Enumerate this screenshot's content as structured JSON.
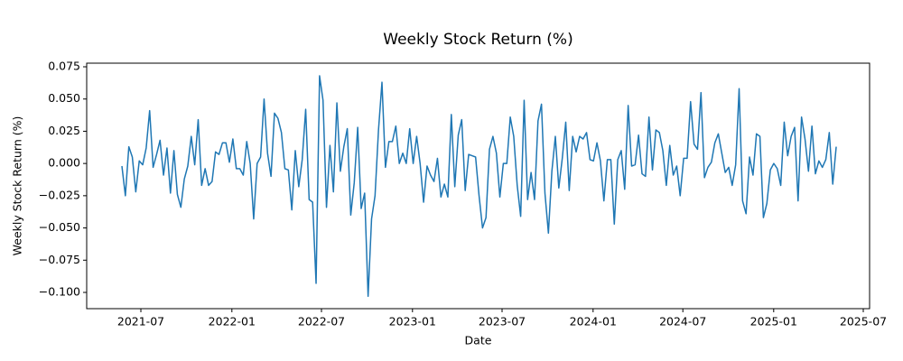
{
  "chart_data": {
    "type": "line",
    "title": "Weekly Stock Return (%)",
    "x_label": "Date",
    "y_label": "Weekly Stock Return (%)",
    "color": "#1f77b4",
    "xlim": [
      2021.196,
      2025.531
    ],
    "ylim": [
      -0.1126,
      0.0778
    ],
    "xticks": [
      {
        "value": 2021.496,
        "label": "2021-07"
      },
      {
        "value": 2022.0,
        "label": "2022-01"
      },
      {
        "value": 2022.496,
        "label": "2022-07"
      },
      {
        "value": 2023.0,
        "label": "2023-01"
      },
      {
        "value": 2023.496,
        "label": "2023-07"
      },
      {
        "value": 2024.0,
        "label": "2024-01"
      },
      {
        "value": 2024.497,
        "label": "2024-07"
      },
      {
        "value": 2025.0,
        "label": "2025-01"
      },
      {
        "value": 2025.496,
        "label": "2025-07"
      }
    ],
    "yticks": [
      {
        "value": -0.1,
        "label": "−0.100"
      },
      {
        "value": -0.075,
        "label": "−0.075"
      },
      {
        "value": -0.05,
        "label": "−0.050"
      },
      {
        "value": -0.025,
        "label": "−0.025"
      },
      {
        "value": 0,
        "label": "0.000"
      },
      {
        "value": 0.025,
        "label": "0.025"
      },
      {
        "value": 0.05,
        "label": "0.050"
      },
      {
        "value": 0.075,
        "label": "0.075"
      }
    ],
    "x": [
      2021.391,
      2021.4102,
      2021.4294,
      2021.4486,
      2021.4678,
      2021.487,
      2021.5062,
      2021.5254,
      2021.5446,
      2021.5638,
      2021.583,
      2021.6022,
      2021.6214,
      2021.6406,
      2021.6598,
      2021.679,
      2021.6982,
      2021.7174,
      2021.7366,
      2021.7558,
      2021.775,
      2021.7942,
      2021.8134,
      2021.8326,
      2021.8518,
      2021.871,
      2021.8902,
      2021.9094,
      2021.9286,
      2021.9478,
      2021.967,
      2021.9862,
      2022.0054,
      2022.0246,
      2022.0438,
      2022.063,
      2022.0822,
      2022.1014,
      2022.1206,
      2022.1398,
      2022.159,
      2022.1782,
      2022.1974,
      2022.2166,
      2022.2358,
      2022.255,
      2022.2742,
      2022.2934,
      2022.3126,
      2022.3318,
      2022.351,
      2022.3702,
      2022.3894,
      2022.4086,
      2022.4278,
      2022.447,
      2022.4662,
      2022.4854,
      2022.5046,
      2022.5238,
      2022.543,
      2022.5622,
      2022.5814,
      2022.6006,
      2022.6198,
      2022.639,
      2022.6582,
      2022.6774,
      2022.6966,
      2022.7158,
      2022.735,
      2022.7542,
      2022.7734,
      2022.7926,
      2022.8118,
      2022.831,
      2022.8502,
      2022.8694,
      2022.8886,
      2022.9078,
      2022.927,
      2022.9462,
      2022.9654,
      2022.9846,
      2023.0038,
      2023.023,
      2023.0422,
      2023.0614,
      2023.0806,
      2023.0998,
      2023.119,
      2023.1382,
      2023.1574,
      2023.1766,
      2023.1958,
      2023.215,
      2023.2342,
      2023.2534,
      2023.2726,
      2023.2918,
      2023.311,
      2023.3302,
      2023.3494,
      2023.3686,
      2023.3878,
      2023.407,
      2023.4262,
      2023.4454,
      2023.4646,
      2023.4838,
      2023.503,
      2023.5222,
      2023.5414,
      2023.5606,
      2023.5798,
      2023.599,
      2023.6182,
      2023.6374,
      2023.6566,
      2023.6758,
      2023.695,
      2023.7142,
      2023.7334,
      2023.7526,
      2023.7718,
      2023.791,
      2023.8102,
      2023.8294,
      2023.8486,
      2023.8678,
      2023.887,
      2023.9062,
      2023.9254,
      2023.9446,
      2023.9638,
      2023.983,
      2024.0022,
      2024.0214,
      2024.0406,
      2024.0598,
      2024.079,
      2024.0982,
      2024.1174,
      2024.1366,
      2024.1558,
      2024.175,
      2024.1942,
      2024.2134,
      2024.2326,
      2024.2518,
      2024.271,
      2024.2902,
      2024.3094,
      2024.3286,
      2024.3478,
      2024.367,
      2024.3862,
      2024.4054,
      2024.4246,
      2024.4438,
      2024.463,
      2024.4822,
      2024.5014,
      2024.5206,
      2024.5398,
      2024.559,
      2024.5782,
      2024.5974,
      2024.6166,
      2024.6358,
      2024.655,
      2024.6742,
      2024.6934,
      2024.7126,
      2024.7318,
      2024.751,
      2024.7702,
      2024.7894,
      2024.8086,
      2024.8278,
      2024.847,
      2024.8662,
      2024.8854,
      2024.9046,
      2024.9238,
      2024.943,
      2024.9622,
      2024.9814,
      2025.0006,
      2025.0198,
      2025.039,
      2025.0582,
      2025.0774,
      2025.0966,
      2025.1158,
      2025.135,
      2025.1542,
      2025.1734,
      2025.1926,
      2025.2118,
      2025.231,
      2025.2502,
      2025.2694,
      2025.2886,
      2025.3078,
      2025.327,
      2025.3462
    ],
    "values": [
      -0.002,
      -0.025,
      0.013,
      0.005,
      -0.022,
      0.002,
      -0.001,
      0.012,
      0.041,
      -0.003,
      0.007,
      0.018,
      -0.009,
      0.012,
      -0.023,
      0.01,
      -0.024,
      -0.034,
      -0.012,
      -0.002,
      0.021,
      -0.001,
      0.034,
      -0.017,
      -0.004,
      -0.017,
      -0.014,
      0.009,
      0.007,
      0.016,
      0.016,
      0.001,
      0.019,
      -0.004,
      -0.004,
      -0.009,
      0.017,
      0.0,
      -0.043,
      0.0,
      0.005,
      0.05,
      0.008,
      -0.01,
      0.039,
      0.035,
      0.024,
      -0.004,
      -0.005,
      -0.036,
      0.01,
      -0.018,
      0.003,
      0.042,
      -0.028,
      -0.03,
      -0.093,
      0.068,
      0.049,
      -0.034,
      0.014,
      -0.022,
      0.047,
      -0.006,
      0.013,
      0.027,
      -0.04,
      -0.015,
      0.028,
      -0.035,
      -0.023,
      -0.103,
      -0.043,
      -0.025,
      0.026,
      0.063,
      -0.003,
      0.017,
      0.017,
      0.029,
      0.0,
      0.008,
      0.0,
      0.027,
      0.0,
      0.021,
      0.0,
      -0.03,
      -0.002,
      -0.009,
      -0.014,
      0.004,
      -0.026,
      -0.016,
      -0.026,
      0.038,
      -0.018,
      0.022,
      0.034,
      -0.021,
      0.007,
      0.006,
      0.005,
      -0.025,
      -0.05,
      -0.042,
      0.011,
      0.021,
      0.008,
      -0.026,
      0.0,
      0.0,
      0.036,
      0.021,
      -0.017,
      -0.041,
      0.049,
      -0.028,
      -0.007,
      -0.028,
      0.033,
      0.046,
      -0.023,
      -0.054,
      -0.006,
      0.021,
      -0.019,
      0.004,
      0.032,
      -0.021,
      0.021,
      0.009,
      0.021,
      0.019,
      0.024,
      0.003,
      0.002,
      0.016,
      0.002,
      -0.029,
      0.003,
      0.003,
      -0.047,
      0.003,
      0.01,
      -0.02,
      0.045,
      -0.002,
      -0.001,
      0.022,
      -0.008,
      -0.01,
      0.036,
      -0.005,
      0.026,
      0.024,
      0.01,
      -0.017,
      0.014,
      -0.009,
      -0.002,
      -0.025,
      0.004,
      0.004,
      0.048,
      0.015,
      0.011,
      0.055,
      -0.011,
      -0.003,
      0.001,
      0.016,
      0.023,
      0.008,
      -0.007,
      -0.003,
      -0.017,
      -0.001,
      0.058,
      -0.029,
      -0.039,
      0.005,
      -0.009,
      0.023,
      0.021,
      -0.042,
      -0.031,
      -0.005,
      0.0,
      -0.004,
      -0.017,
      0.032,
      0.006,
      0.021,
      0.028,
      -0.029,
      0.036,
      0.019,
      -0.006,
      0.029,
      -0.008,
      0.002,
      -0.003,
      0.003,
      0.024,
      -0.016,
      0.013
    ]
  }
}
